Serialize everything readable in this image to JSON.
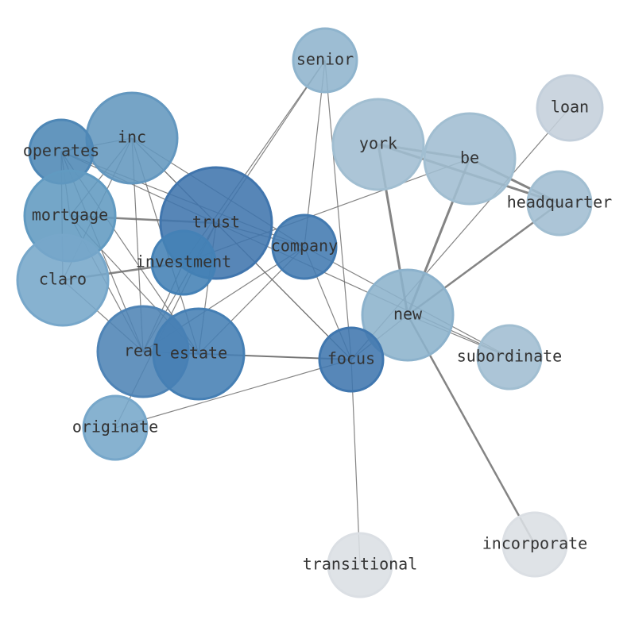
{
  "nodes": [
    "senior",
    "loan",
    "inc",
    "operates",
    "york",
    "be",
    "headquarter",
    "mortgage",
    "trust",
    "company",
    "investment",
    "claro",
    "new",
    "real",
    "estate",
    "focus",
    "subordinate",
    "originate",
    "transitional",
    "incorporate"
  ]
}
